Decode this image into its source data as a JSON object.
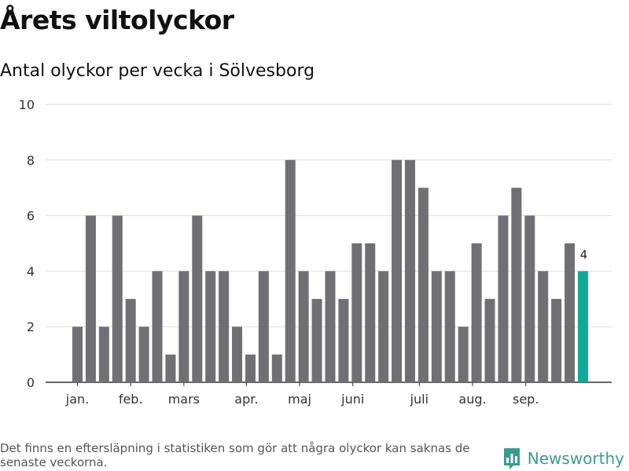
{
  "title": "Årets viltolyckor",
  "subtitle": "Antal olyckor per vecka i Sölvesborg",
  "footnote": "Det finns en eftersläpning i statistiken som gör att några olyckor kan saknas de senaste veckorna.",
  "brand": "Newsworthy",
  "colors": {
    "bar": "#707074",
    "highlight": "#13a898",
    "grid": "#dddddd",
    "axis": "#333333",
    "brand": "#3e9a8d"
  },
  "chart_data": {
    "type": "bar",
    "ylim": [
      0,
      10
    ],
    "yticks": [
      0,
      2,
      4,
      6,
      8,
      10
    ],
    "grid": true,
    "values": [
      2,
      6,
      2,
      6,
      3,
      2,
      4,
      1,
      4,
      6,
      4,
      4,
      2,
      1,
      4,
      1,
      8,
      4,
      3,
      4,
      3,
      5,
      5,
      4,
      8,
      8,
      7,
      4,
      4,
      2,
      5,
      3,
      6,
      7,
      6,
      4,
      3,
      5,
      4
    ],
    "highlight_index": 38,
    "highlight_label": "4",
    "month_labels": [
      {
        "label": "jan.",
        "bar": 0.5
      },
      {
        "label": "feb.",
        "bar": 4.5
      },
      {
        "label": "mars",
        "bar": 8.5
      },
      {
        "label": "apr.",
        "bar": 13.2
      },
      {
        "label": "maj",
        "bar": 17.2
      },
      {
        "label": "juni",
        "bar": 21.2
      },
      {
        "label": "juli",
        "bar": 26.2
      },
      {
        "label": "aug.",
        "bar": 30.2
      },
      {
        "label": "sep.",
        "bar": 34.2
      }
    ]
  }
}
